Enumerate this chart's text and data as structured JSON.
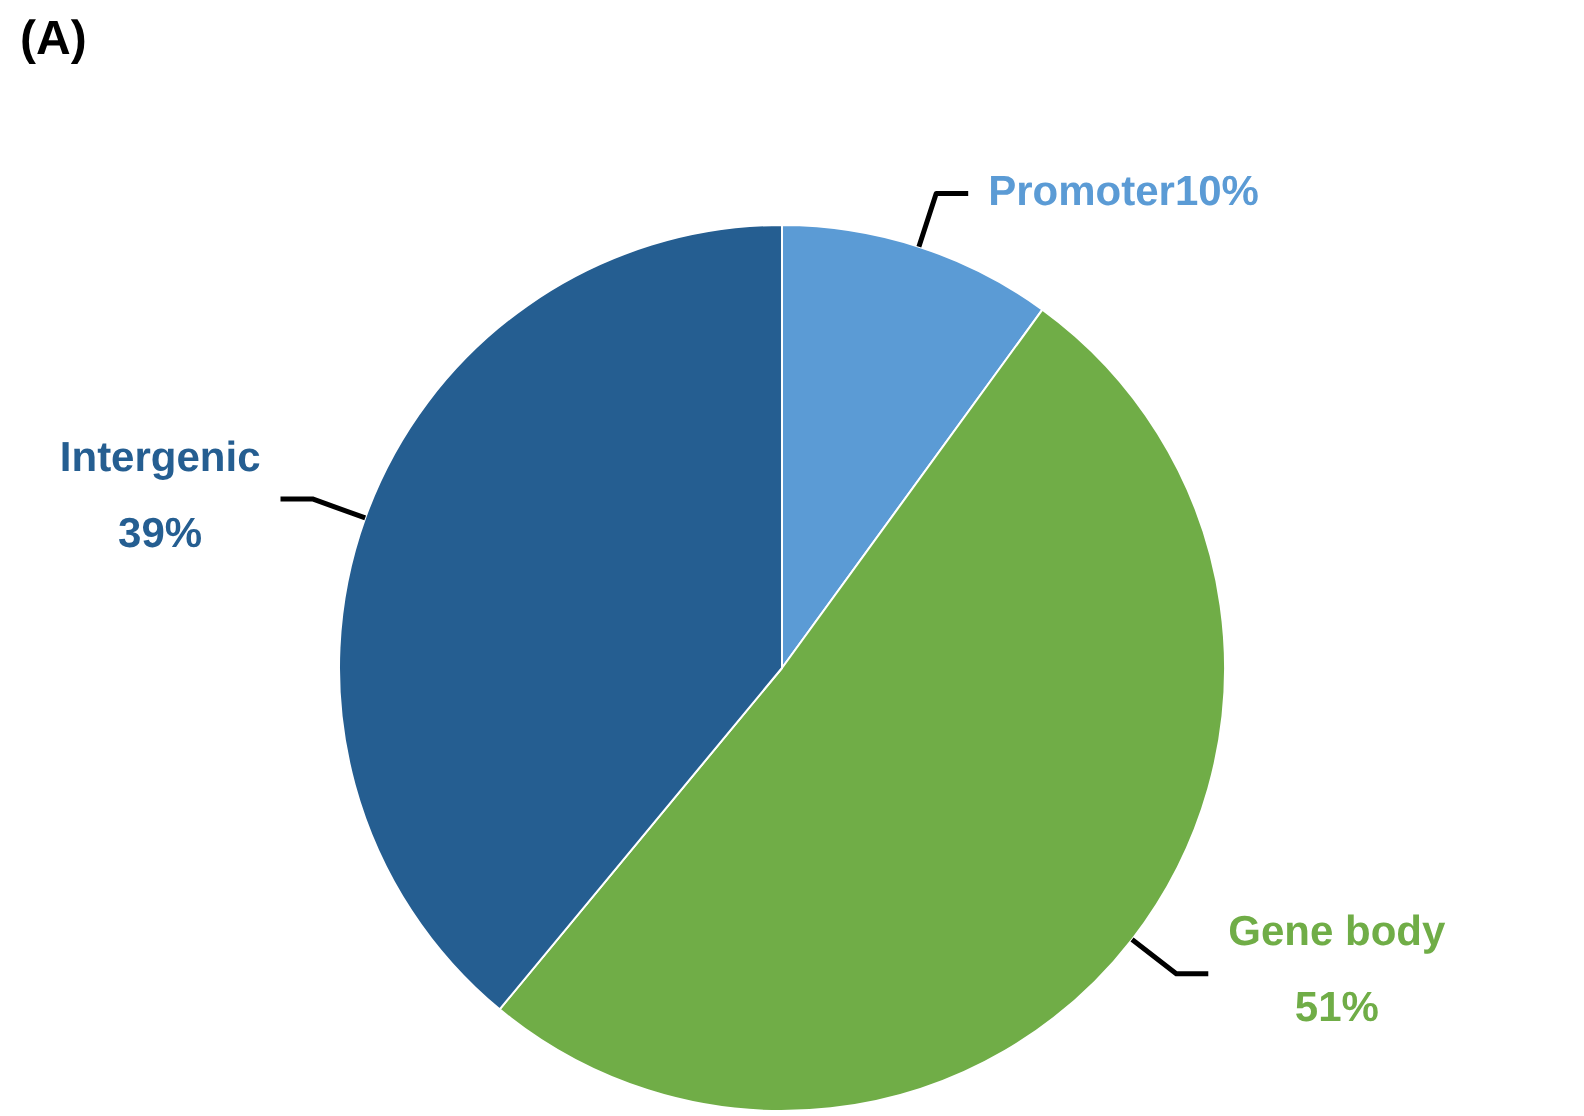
{
  "chart_data": {
    "type": "pie",
    "title": "(A)",
    "categories": [
      "Promoter",
      "Gene body",
      "Intergenic"
    ],
    "values": [
      10,
      51,
      39
    ],
    "colors": [
      "#5b9bd5",
      "#70ad47",
      "#255e91"
    ],
    "value_labels": [
      "10%",
      "51%",
      "39%"
    ],
    "legend": false
  }
}
